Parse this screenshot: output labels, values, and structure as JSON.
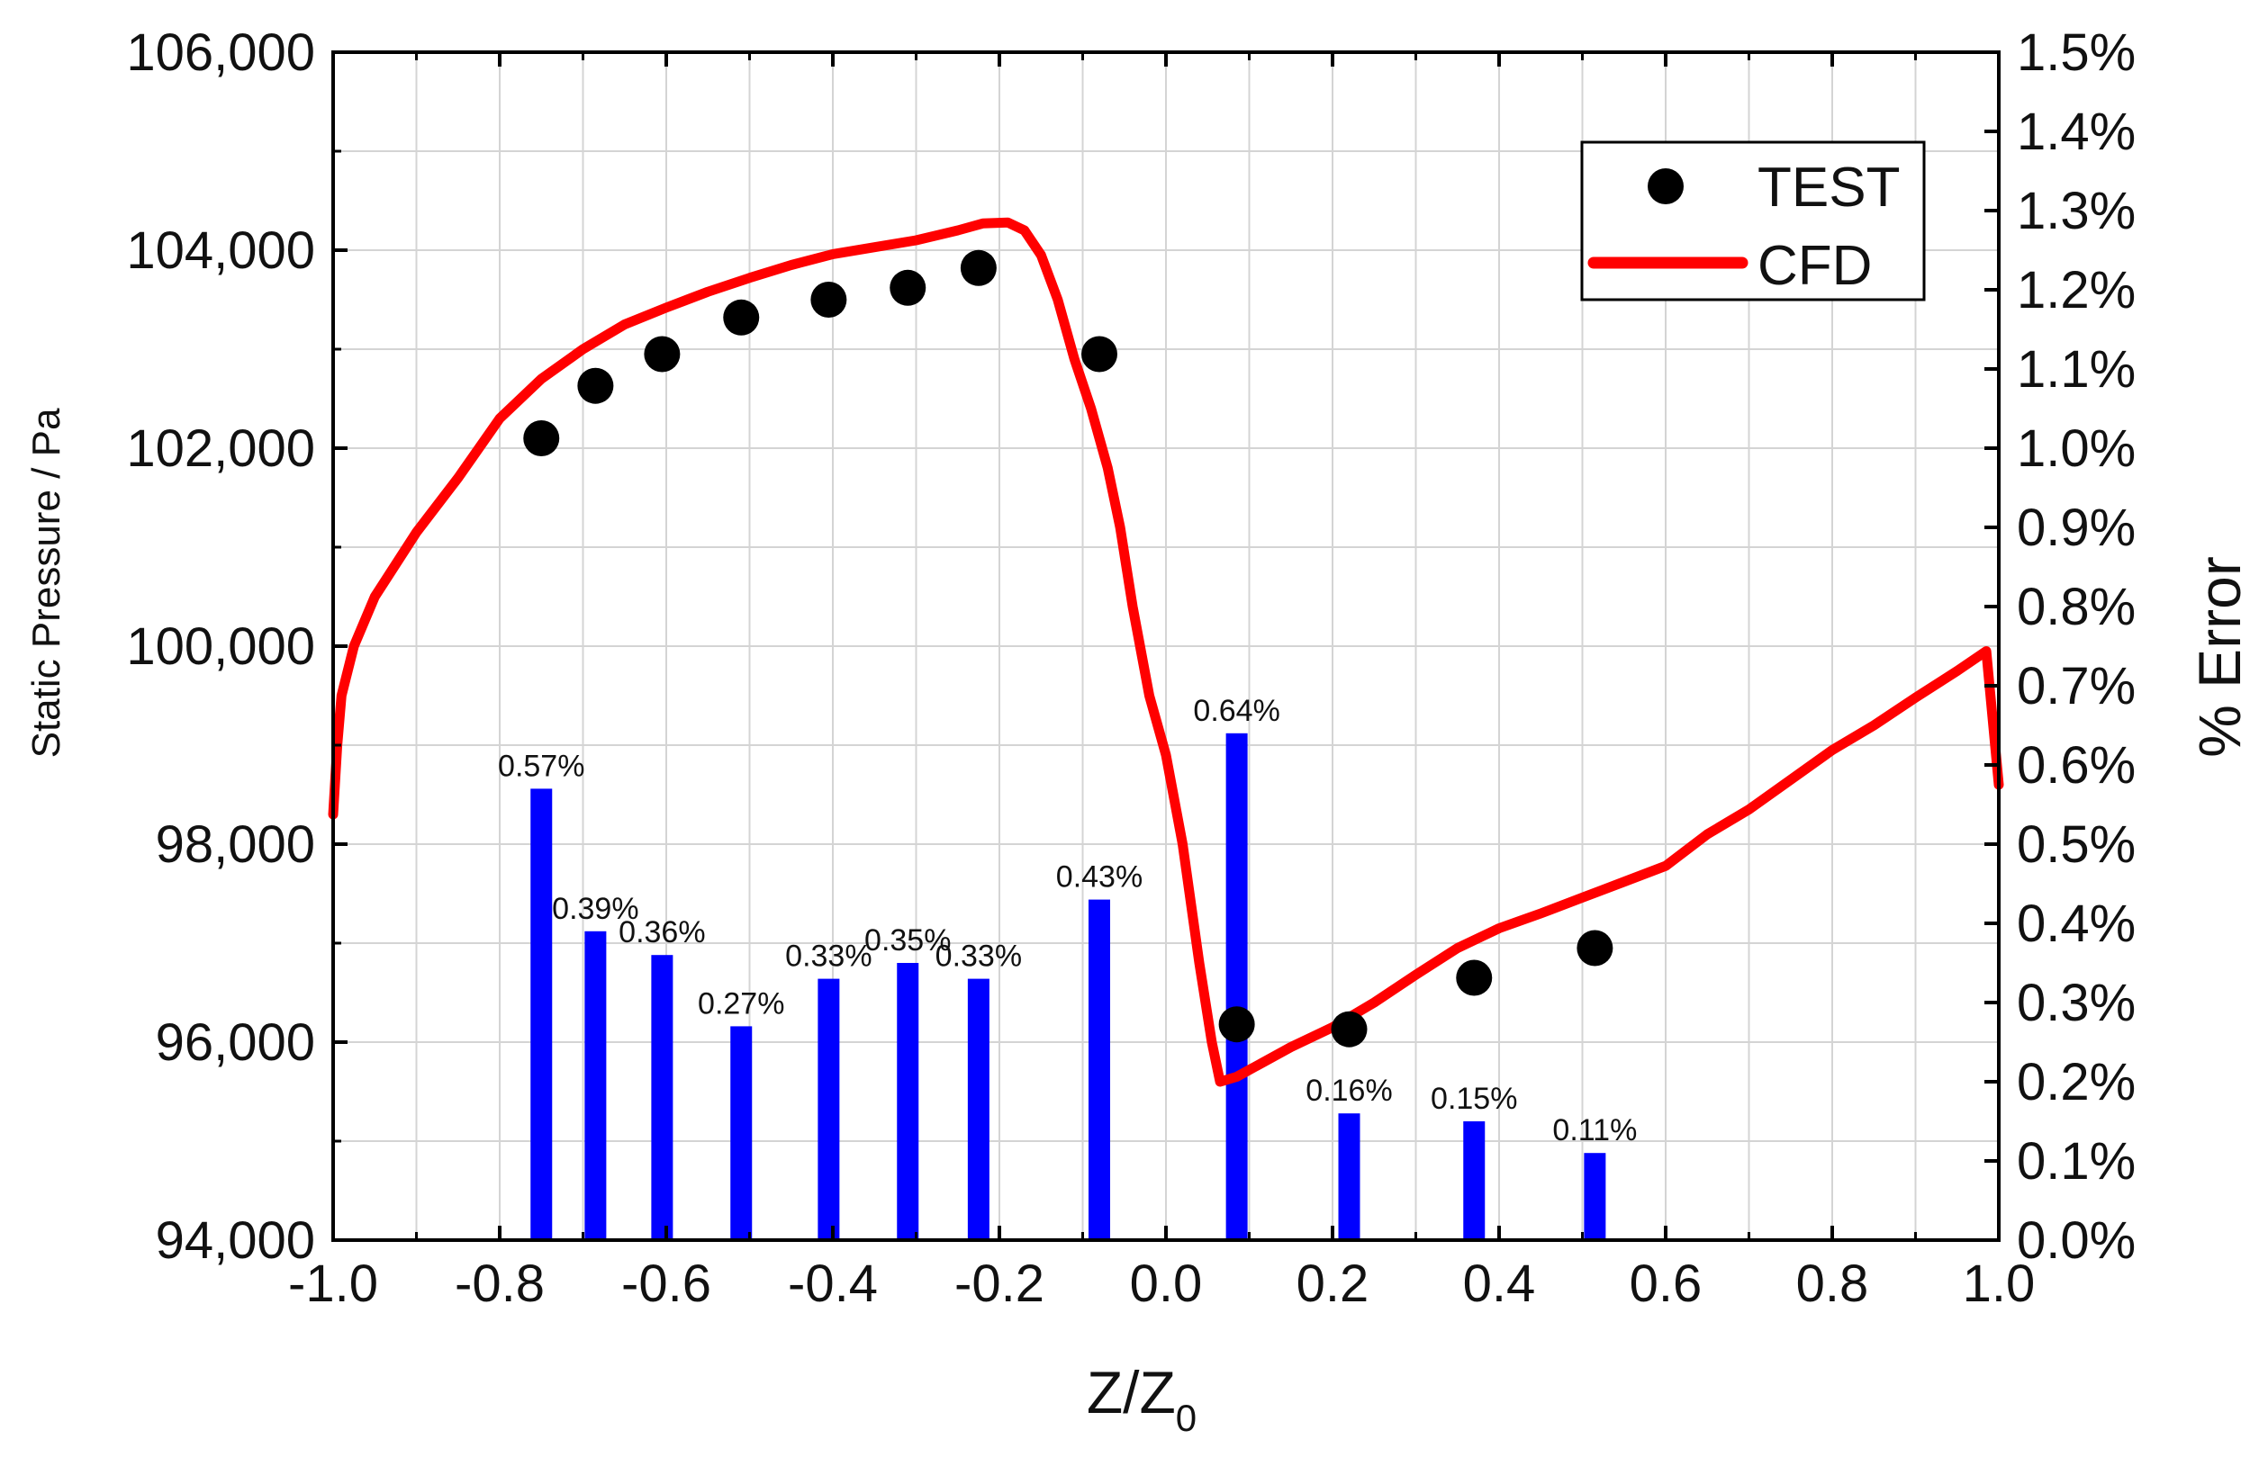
{
  "chart_data": {
    "type": "combo",
    "xlabel": "Z/Z",
    "xlabel_subscript": "0",
    "ylabel_left": "Static Pressure /  Pa",
    "ylabel_right": "% Error",
    "xlim": [
      -1.0,
      1.0
    ],
    "ylim_left": [
      94000,
      106000
    ],
    "ylim_right": [
      0.0,
      1.5
    ],
    "grid": true,
    "legend_position": "top-right",
    "x_ticks": [
      "-1.0",
      "-0.8",
      "-0.6",
      "-0.4",
      "-0.2",
      "0.0",
      "0.2",
      "0.4",
      "0.6",
      "0.8",
      "1.0"
    ],
    "y_left_ticks": [
      "94,000",
      "96,000",
      "98,000",
      "100,000",
      "102,000",
      "104,000",
      "106,000"
    ],
    "y_right_ticks": [
      "0.0%",
      "0.1%",
      "0.2%",
      "0.3%",
      "0.4%",
      "0.5%",
      "0.6%",
      "0.7%",
      "0.8%",
      "0.9%",
      "1.0%",
      "1.1%",
      "1.2%",
      "1.3%",
      "1.4%",
      "1.5%"
    ],
    "series": [
      {
        "name": "TEST",
        "kind": "scatter",
        "axis": "left",
        "color": "#000000",
        "points": [
          [
            -0.75,
            102100
          ],
          [
            -0.685,
            102630
          ],
          [
            -0.605,
            102950
          ],
          [
            -0.51,
            103320
          ],
          [
            -0.405,
            103500
          ],
          [
            -0.31,
            103620
          ],
          [
            -0.225,
            103820
          ],
          [
            -0.08,
            102950
          ],
          [
            0.085,
            96180
          ],
          [
            0.22,
            96130
          ],
          [
            0.37,
            96650
          ],
          [
            0.515,
            96950
          ]
        ]
      },
      {
        "name": "CFD",
        "kind": "line",
        "axis": "left",
        "color": "#ff0000",
        "points": [
          [
            -1.0,
            98300
          ],
          [
            -0.995,
            99000
          ],
          [
            -0.99,
            99500
          ],
          [
            -0.975,
            100000
          ],
          [
            -0.95,
            100500
          ],
          [
            -0.9,
            101150
          ],
          [
            -0.85,
            101700
          ],
          [
            -0.8,
            102300
          ],
          [
            -0.75,
            102700
          ],
          [
            -0.7,
            103000
          ],
          [
            -0.65,
            103250
          ],
          [
            -0.6,
            103420
          ],
          [
            -0.55,
            103580
          ],
          [
            -0.5,
            103720
          ],
          [
            -0.45,
            103850
          ],
          [
            -0.4,
            103960
          ],
          [
            -0.35,
            104030
          ],
          [
            -0.3,
            104100
          ],
          [
            -0.25,
            104200
          ],
          [
            -0.22,
            104270
          ],
          [
            -0.19,
            104280
          ],
          [
            -0.17,
            104200
          ],
          [
            -0.15,
            103950
          ],
          [
            -0.13,
            103500
          ],
          [
            -0.11,
            102900
          ],
          [
            -0.09,
            102400
          ],
          [
            -0.07,
            101800
          ],
          [
            -0.055,
            101200
          ],
          [
            -0.04,
            100400
          ],
          [
            -0.02,
            99500
          ],
          [
            0.0,
            98900
          ],
          [
            0.02,
            98000
          ],
          [
            0.04,
            96800
          ],
          [
            0.055,
            96000
          ],
          [
            0.065,
            95600
          ],
          [
            0.085,
            95650
          ],
          [
            0.15,
            95950
          ],
          [
            0.2,
            96150
          ],
          [
            0.25,
            96400
          ],
          [
            0.3,
            96680
          ],
          [
            0.35,
            96950
          ],
          [
            0.4,
            97150
          ],
          [
            0.45,
            97300
          ],
          [
            0.5,
            97460
          ],
          [
            0.55,
            97620
          ],
          [
            0.6,
            97780
          ],
          [
            0.65,
            98100
          ],
          [
            0.7,
            98350
          ],
          [
            0.75,
            98650
          ],
          [
            0.8,
            98950
          ],
          [
            0.85,
            99200
          ],
          [
            0.9,
            99480
          ],
          [
            0.95,
            99750
          ],
          [
            0.985,
            99950
          ],
          [
            1.0,
            98600
          ]
        ]
      },
      {
        "name": "% Error",
        "kind": "bar",
        "axis": "right",
        "color": "#0000ff",
        "points": [
          [
            -0.75,
            0.57,
            "0.57%"
          ],
          [
            -0.685,
            0.39,
            "0.39%"
          ],
          [
            -0.605,
            0.36,
            "0.36%"
          ],
          [
            -0.51,
            0.27,
            "0.27%"
          ],
          [
            -0.405,
            0.33,
            "0.33%"
          ],
          [
            -0.31,
            0.35,
            "0.35%"
          ],
          [
            -0.225,
            0.33,
            "0.33%"
          ],
          [
            -0.08,
            0.43,
            "0.43%"
          ],
          [
            0.085,
            0.64,
            "0.64%"
          ],
          [
            0.22,
            0.16,
            "0.16%"
          ],
          [
            0.37,
            0.15,
            "0.15%"
          ],
          [
            0.515,
            0.11,
            "0.11%"
          ]
        ]
      }
    ],
    "legend": [
      {
        "label": "TEST",
        "symbol": "circle",
        "color": "#000000"
      },
      {
        "label": "CFD",
        "symbol": "line",
        "color": "#ff0000"
      }
    ]
  }
}
